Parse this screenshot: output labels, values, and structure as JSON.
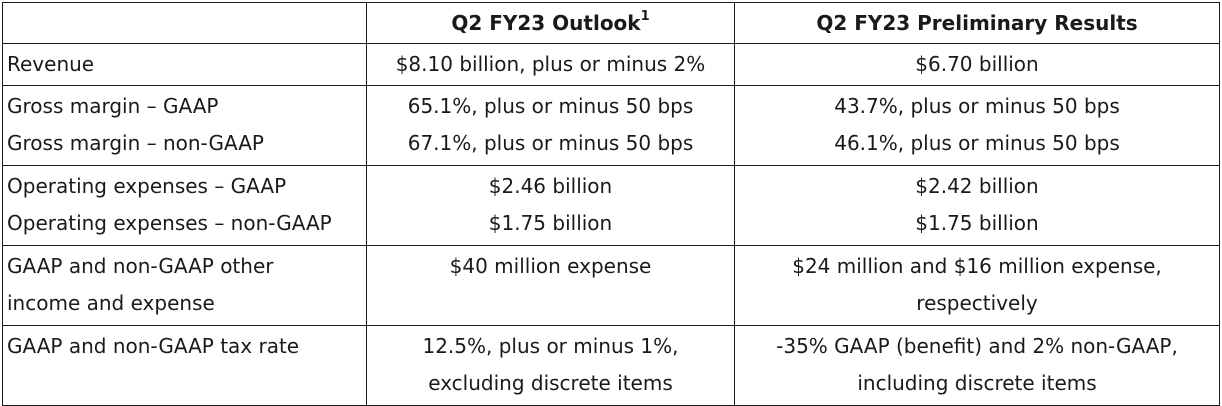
{
  "header": {
    "col1": "",
    "col2": "Q2 FY23 Outlook",
    "col2_footnote": "1",
    "col3": "Q2 FY23 Preliminary Results"
  },
  "rows": [
    {
      "label": [
        "Revenue"
      ],
      "outlook": [
        "$8.10 billion, plus or minus 2%"
      ],
      "results": [
        "$6.70 billion"
      ]
    },
    {
      "label": [
        "Gross margin – GAAP",
        "Gross margin – non-GAAP"
      ],
      "outlook": [
        "65.1%, plus or minus 50 bps",
        "67.1%, plus or minus 50 bps"
      ],
      "results": [
        "43.7%, plus or minus 50 bps",
        "46.1%, plus or minus 50 bps"
      ]
    },
    {
      "label": [
        "Operating expenses – GAAP",
        "Operating expenses – non-GAAP"
      ],
      "outlook": [
        "$2.46 billion",
        "$1.75 billion"
      ],
      "results": [
        "$2.42 billion",
        "$1.75 billion"
      ]
    },
    {
      "label": [
        "GAAP and non-GAAP other",
        "income and expense"
      ],
      "outlook": [
        "$40 million expense"
      ],
      "results": [
        "$24 million and $16 million expense,",
        "respectively"
      ]
    },
    {
      "label": [
        "GAAP and non-GAAP tax rate"
      ],
      "outlook": [
        "12.5%, plus or minus 1%,",
        "excluding discrete items"
      ],
      "results": [
        "-35% GAAP (benefit) and 2% non-GAAP,",
        "including discrete items"
      ]
    }
  ]
}
